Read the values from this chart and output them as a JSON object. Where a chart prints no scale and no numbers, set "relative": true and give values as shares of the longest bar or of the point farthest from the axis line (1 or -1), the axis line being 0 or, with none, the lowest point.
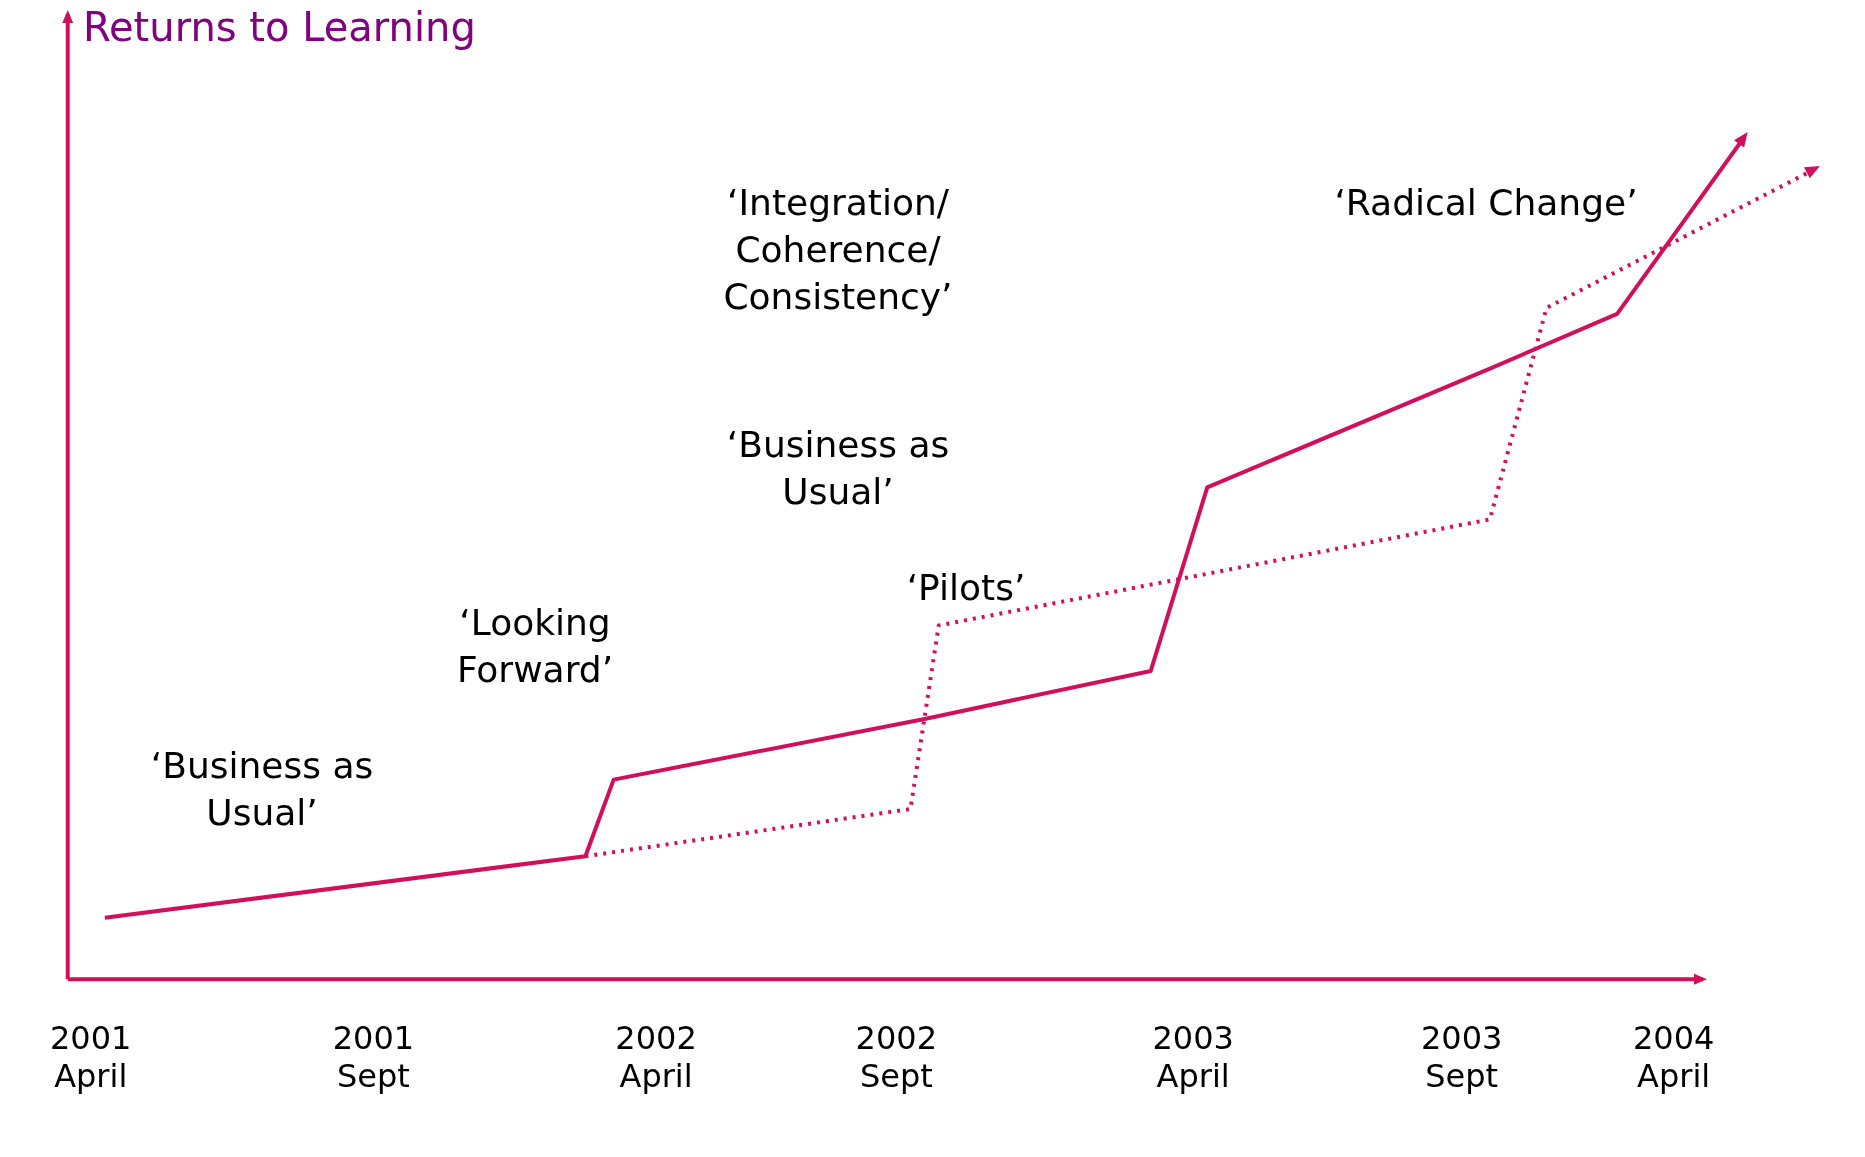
{
  "chart_data": {
    "type": "line",
    "title": "Returns to Learning",
    "relative": true,
    "legend": false,
    "grid": false,
    "categories": [
      "2001 April",
      null,
      null,
      null,
      null,
      null,
      null,
      null,
      null,
      null,
      null,
      null,
      null,
      null,
      null,
      null,
      null,
      null,
      null,
      null,
      "2001 Sept",
      null,
      null,
      null,
      null,
      null,
      null,
      null,
      null,
      null,
      null,
      null,
      null,
      null,
      null,
      null,
      null,
      null,
      null,
      null,
      "2002 April",
      null,
      null,
      null,
      null,
      null,
      null,
      null,
      null,
      null,
      null,
      null,
      null,
      null,
      null,
      null,
      null,
      "2002 Sept",
      null,
      null,
      null,
      null,
      null,
      null,
      null,
      null,
      null,
      null,
      null,
      null,
      null,
      null,
      null,
      null,
      null,
      null,
      null,
      null,
      "2003 April",
      null,
      null,
      null,
      null,
      null,
      null,
      null,
      null,
      null,
      null,
      null,
      null,
      null,
      null,
      null,
      null,
      null,
      null,
      "2003 Sept",
      null,
      null,
      null,
      null,
      null,
      null,
      null,
      null,
      null,
      null,
      null,
      null,
      null,
      null,
      "2004 April",
      null,
      null,
      null,
      null,
      null,
      null,
      null,
      null,
      null,
      null
    ],
    "series": [
      {
        "color": "#d0105a",
        "line_style": "solid",
        "values": [
          null,
          0.073,
          null,
          null,
          null,
          null,
          null,
          null,
          null,
          null,
          null,
          null,
          null,
          null,
          null,
          null,
          null,
          null,
          null,
          null,
          null,
          null,
          null,
          null,
          null,
          null,
          null,
          null,
          null,
          null,
          null,
          null,
          null,
          null,
          null,
          0.146,
          null,
          0.237,
          null,
          null,
          null,
          null,
          null,
          null,
          null,
          null,
          null,
          null,
          null,
          null,
          null,
          null,
          null,
          null,
          null,
          null,
          null,
          null,
          null,
          0.309,
          null,
          null,
          null,
          null,
          null,
          null,
          null,
          null,
          null,
          null,
          null,
          null,
          null,
          null,
          null,
          0.366,
          null,
          null,
          null,
          0.584,
          null,
          null,
          null,
          null,
          null,
          null,
          null,
          null,
          null,
          null,
          null,
          null,
          null,
          null,
          null,
          null,
          null,
          null,
          null,
          0.725,
          null,
          null,
          null,
          null,
          null,
          null,
          null,
          null,
          0.79,
          null,
          null,
          null,
          null,
          null,
          null,
          null,
          null,
          1,
          null,
          null,
          null,
          null,
          null
        ]
      },
      {
        "color": "#d0105a",
        "line_style": "dotted",
        "values": [
          null,
          null,
          null,
          null,
          null,
          null,
          null,
          null,
          null,
          null,
          null,
          null,
          null,
          null,
          null,
          null,
          null,
          null,
          null,
          null,
          null,
          null,
          null,
          null,
          null,
          null,
          null,
          null,
          null,
          null,
          null,
          null,
          null,
          null,
          null,
          0.146,
          null,
          null,
          null,
          null,
          null,
          null,
          null,
          null,
          null,
          null,
          null,
          null,
          null,
          null,
          null,
          null,
          null,
          null,
          null,
          null,
          null,
          null,
          0.202,
          null,
          0.42,
          null,
          null,
          null,
          null,
          null,
          null,
          null,
          null,
          null,
          null,
          null,
          null,
          null,
          null,
          null,
          null,
          null,
          null,
          null,
          null,
          null,
          null,
          null,
          null,
          null,
          null,
          null,
          null,
          null,
          null,
          null,
          null,
          null,
          null,
          null,
          null,
          null,
          null,
          0.546,
          null,
          null,
          null,
          0.797,
          null,
          null,
          null,
          null,
          null,
          null,
          null,
          null,
          null,
          null,
          null,
          null,
          null,
          null,
          null,
          null,
          null,
          null,
          0.962
        ]
      }
    ],
    "annotations": [
      "‘Business as Usual’",
      "‘Looking Forward’",
      "‘Integration/ Coherence/ Consistency’",
      "‘Business as Usual’",
      "‘Pilots’",
      "‘Radical Change’"
    ]
  }
}
